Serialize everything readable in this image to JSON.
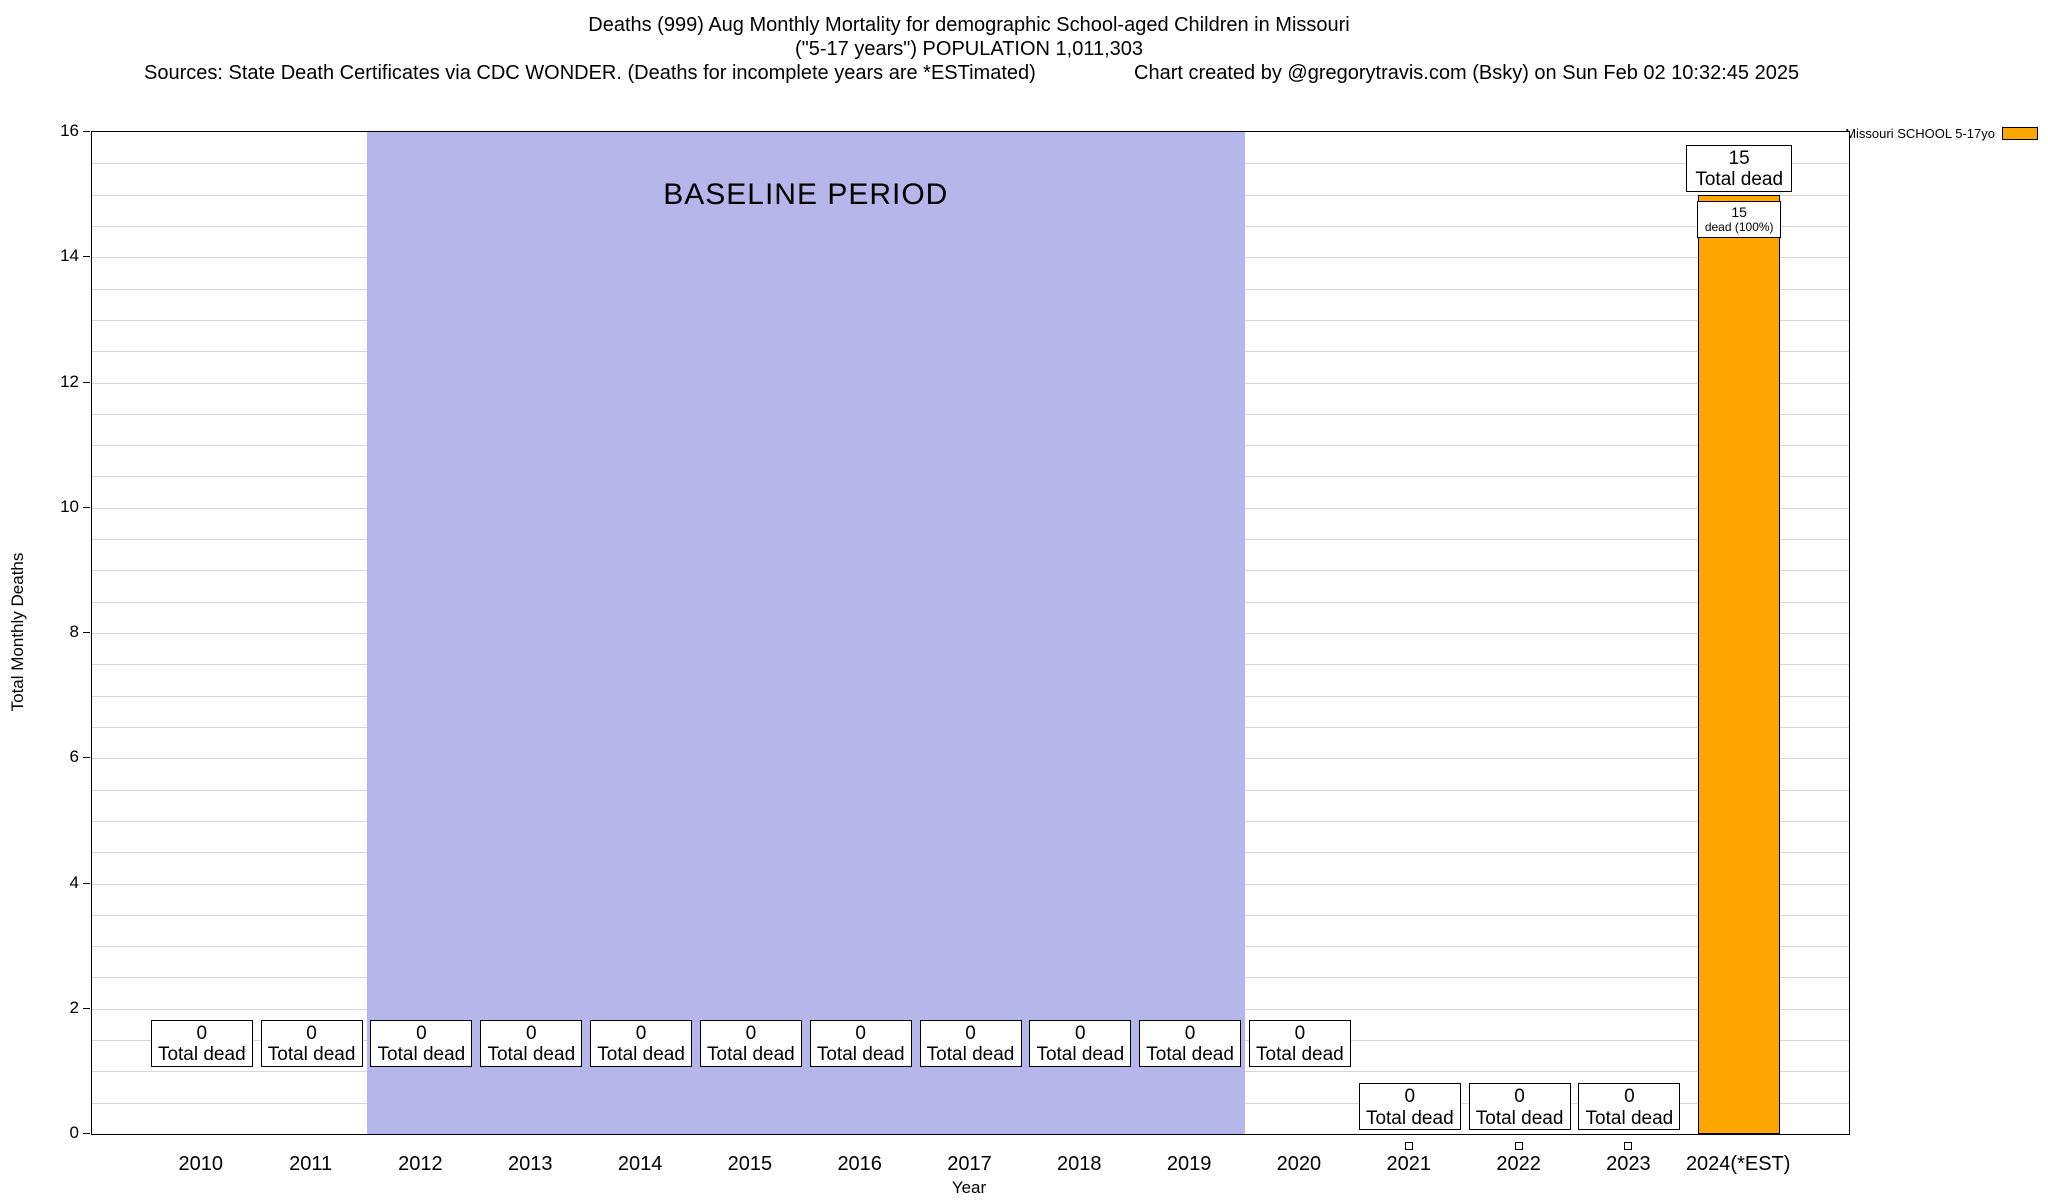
{
  "header": {
    "title_line1": "Deaths (999) Aug Monthly Mortality for demographic School-aged Children in Missouri",
    "title_line2": "(\"5-17 years\") POPULATION 1,011,303",
    "sources": "Sources: State Death Certificates via CDC WONDER. (Deaths for incomplete years are *ESTimated)",
    "credit": "Chart created by @gregorytravis.com (Bsky) on Sun Feb 02 10:32:45 2025"
  },
  "chart_data": {
    "type": "bar",
    "title": "Deaths (999) Aug Monthly Mortality for demographic School-aged Children in Missouri (\"5-17 years\") POPULATION 1,011,303",
    "xlabel": "Year",
    "ylabel": "Total Monthly Deaths",
    "xlim": [
      2009,
      2025
    ],
    "ylim": [
      0,
      16
    ],
    "ytick_step": 2,
    "grid_minor_step": 0.5,
    "grid_color": "#d7d7d7",
    "categories": [
      "2010",
      "2011",
      "2012",
      "2013",
      "2014",
      "2015",
      "2016",
      "2017",
      "2018",
      "2019",
      "2020",
      "2021",
      "2022",
      "2023",
      "2024(*EST)"
    ],
    "values": [
      0,
      0,
      0,
      0,
      0,
      0,
      0,
      0,
      0,
      0,
      0,
      0,
      0,
      0,
      15
    ],
    "bar_color": "#ffa500",
    "legend": {
      "label": "Missouri SCHOOL 5-17yo",
      "position": "top-right",
      "swatch_color": "#ffa500"
    },
    "baseline_region": {
      "label": "BASELINE PERIOD",
      "x_start": 2011.5,
      "x_end": 2019.5,
      "color": "#b6b6ea",
      "label_y": 15
    },
    "zero_label": {
      "value": "0",
      "text": "Total dead"
    },
    "bar_labels": {
      "above_value": "15",
      "above_text": "Total dead",
      "inner_line1": "15",
      "inner_line2": "dead (100%)"
    },
    "zero_box_row": [
      "high",
      "high",
      "high",
      "high",
      "high",
      "high",
      "high",
      "high",
      "high",
      "high",
      "high",
      "low",
      "low",
      "low",
      "bar"
    ],
    "zero_box_center_y": {
      "high": 1.46,
      "low": 0.45
    },
    "below_axis_markers": [
      "2021",
      "2022",
      "2023"
    ]
  }
}
